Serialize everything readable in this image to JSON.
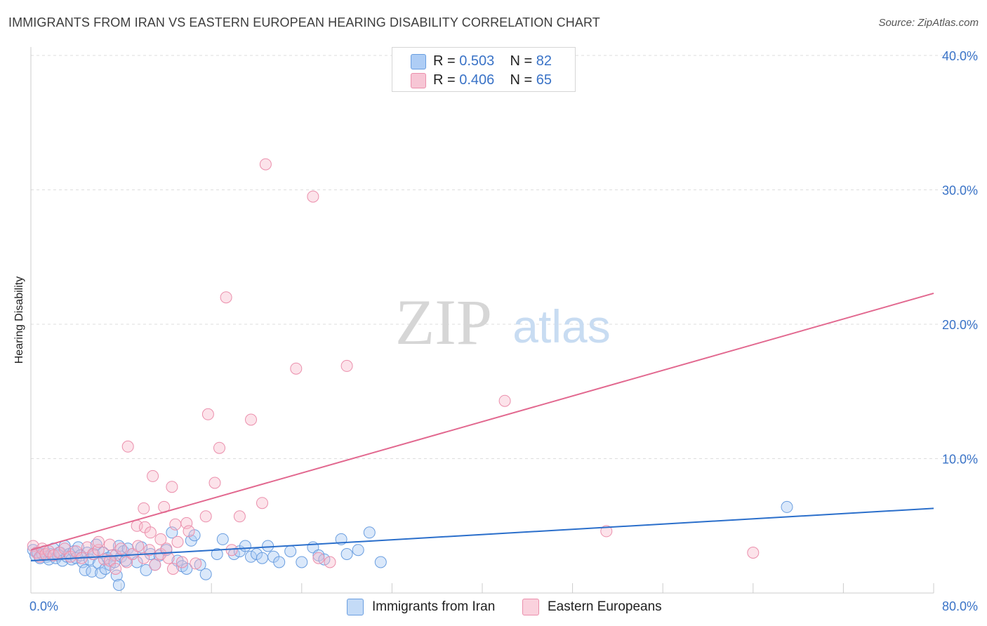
{
  "title": "IMMIGRANTS FROM IRAN VS EASTERN EUROPEAN HEARING DISABILITY CORRELATION CHART",
  "source": "Source: ZipAtlas.com",
  "watermark": {
    "zip": "ZIP",
    "atlas": "atlas"
  },
  "colors": {
    "blue_fill": "#aecdf5",
    "blue_stroke": "#6a9ee0",
    "blue_line": "#2b6fcb",
    "pink_fill": "#f7b9cb",
    "pink_stroke": "#eb8fac",
    "pink_line": "#e2688f",
    "tick_label": "#3a73c7",
    "grid": "#dddddd"
  },
  "stats": [
    {
      "r_label": "R =",
      "r_value": "0.503",
      "n_label": "N =",
      "n_value": "82",
      "series": "blue"
    },
    {
      "r_label": "R =",
      "r_value": "0.406",
      "n_label": "N =",
      "n_value": "65",
      "series": "pink"
    }
  ],
  "legend": [
    {
      "label": "Immigrants from Iran",
      "series": "blue"
    },
    {
      "label": "Eastern Europeans",
      "series": "pink"
    }
  ],
  "chart_data": {
    "type": "scatter",
    "ylabel": "Hearing Disability",
    "xlim": [
      0,
      80
    ],
    "ylim": [
      0,
      40
    ],
    "x_tick_labels": [
      {
        "x": 0,
        "label": "0.0%"
      },
      {
        "x": 80,
        "label": "80.0%"
      }
    ],
    "y_tick_labels": [
      {
        "y": 10,
        "label": "10.0%"
      },
      {
        "y": 20,
        "label": "20.0%"
      },
      {
        "y": 30,
        "label": "30.0%"
      },
      {
        "y": 40,
        "label": "40.0%"
      }
    ],
    "series": [
      {
        "name": "Immigrants from Iran",
        "color": "#6a9ee0",
        "trend": {
          "x": [
            0,
            80
          ],
          "y": [
            2.4,
            6.3
          ]
        },
        "points": [
          [
            0.2,
            3.2
          ],
          [
            0.4,
            2.8
          ],
          [
            0.6,
            3.0
          ],
          [
            0.8,
            2.6
          ],
          [
            1.0,
            2.9
          ],
          [
            1.2,
            3.1
          ],
          [
            1.4,
            2.7
          ],
          [
            1.6,
            2.5
          ],
          [
            1.8,
            2.9
          ],
          [
            2.0,
            3.3
          ],
          [
            2.2,
            2.6
          ],
          [
            2.4,
            2.8
          ],
          [
            2.6,
            3.0
          ],
          [
            2.8,
            2.4
          ],
          [
            3.0,
            3.5
          ],
          [
            3.2,
            2.7
          ],
          [
            3.4,
            2.9
          ],
          [
            3.6,
            2.5
          ],
          [
            3.8,
            3.1
          ],
          [
            4.0,
            2.6
          ],
          [
            4.2,
            3.4
          ],
          [
            4.4,
            2.8
          ],
          [
            4.6,
            2.3
          ],
          [
            4.8,
            1.7
          ],
          [
            5.0,
            3.0
          ],
          [
            5.2,
            2.5
          ],
          [
            5.4,
            1.6
          ],
          [
            5.6,
            2.9
          ],
          [
            5.8,
            3.6
          ],
          [
            6.0,
            2.2
          ],
          [
            6.2,
            1.5
          ],
          [
            6.4,
            3.0
          ],
          [
            6.6,
            1.8
          ],
          [
            6.8,
            2.6
          ],
          [
            7.0,
            2.1
          ],
          [
            7.2,
            2.8
          ],
          [
            7.4,
            2.3
          ],
          [
            7.6,
            1.3
          ],
          [
            7.8,
            3.5
          ],
          [
            8.0,
            2.7
          ],
          [
            8.2,
            3.1
          ],
          [
            8.4,
            2.4
          ],
          [
            8.6,
            3.3
          ],
          [
            9.0,
            2.9
          ],
          [
            9.4,
            2.3
          ],
          [
            9.8,
            3.4
          ],
          [
            10.2,
            1.7
          ],
          [
            10.6,
            2.9
          ],
          [
            11.0,
            2.1
          ],
          [
            11.4,
            2.8
          ],
          [
            12.0,
            3.2
          ],
          [
            12.5,
            4.5
          ],
          [
            13.0,
            2.4
          ],
          [
            13.4,
            2.0
          ],
          [
            13.8,
            1.8
          ],
          [
            14.2,
            3.9
          ],
          [
            14.5,
            4.3
          ],
          [
            15.0,
            2.1
          ],
          [
            15.5,
            1.4
          ],
          [
            16.5,
            2.9
          ],
          [
            17.0,
            4.0
          ],
          [
            18.0,
            2.9
          ],
          [
            18.5,
            3.1
          ],
          [
            19.0,
            3.5
          ],
          [
            19.5,
            2.7
          ],
          [
            20.0,
            2.9
          ],
          [
            20.5,
            2.6
          ],
          [
            21.0,
            3.5
          ],
          [
            21.5,
            2.7
          ],
          [
            22.0,
            2.3
          ],
          [
            23.0,
            3.1
          ],
          [
            24.0,
            2.3
          ],
          [
            25.0,
            3.4
          ],
          [
            25.5,
            2.8
          ],
          [
            26.0,
            2.5
          ],
          [
            27.5,
            4.0
          ],
          [
            28.0,
            2.9
          ],
          [
            29.0,
            3.2
          ],
          [
            30.0,
            4.5
          ],
          [
            31.0,
            2.3
          ],
          [
            7.8,
            0.6
          ],
          [
            67.0,
            6.4
          ]
        ]
      },
      {
        "name": "Eastern Europeans",
        "color": "#eb8fac",
        "trend": {
          "x": [
            0,
            80
          ],
          "y": [
            3.2,
            22.3
          ]
        },
        "points": [
          [
            0.2,
            3.5
          ],
          [
            0.5,
            3.0
          ],
          [
            0.8,
            2.7
          ],
          [
            1.0,
            3.3
          ],
          [
            1.3,
            2.9
          ],
          [
            1.6,
            3.1
          ],
          [
            2.0,
            2.8
          ],
          [
            2.5,
            3.0
          ],
          [
            3.0,
            3.3
          ],
          [
            3.5,
            2.7
          ],
          [
            4.0,
            3.1
          ],
          [
            4.5,
            2.6
          ],
          [
            5.0,
            3.4
          ],
          [
            5.5,
            2.9
          ],
          [
            6.0,
            3.2
          ],
          [
            6.5,
            2.5
          ],
          [
            7.0,
            3.6
          ],
          [
            7.5,
            2.8
          ],
          [
            8.0,
            3.3
          ],
          [
            8.5,
            2.3
          ],
          [
            9.0,
            2.9
          ],
          [
            9.5,
            3.5
          ],
          [
            10.0,
            2.6
          ],
          [
            10.5,
            3.2
          ],
          [
            11.0,
            2.1
          ],
          [
            11.5,
            2.9
          ],
          [
            12.0,
            3.3
          ],
          [
            6.0,
            3.8
          ],
          [
            7.0,
            2.4
          ],
          [
            7.5,
            1.8
          ],
          [
            8.6,
            10.9
          ],
          [
            9.4,
            5.0
          ],
          [
            10.0,
            6.3
          ],
          [
            10.1,
            4.9
          ],
          [
            10.6,
            4.5
          ],
          [
            10.8,
            8.7
          ],
          [
            11.5,
            4.0
          ],
          [
            11.8,
            6.4
          ],
          [
            12.2,
            2.6
          ],
          [
            12.5,
            7.9
          ],
          [
            12.6,
            1.8
          ],
          [
            12.8,
            5.1
          ],
          [
            13.0,
            3.8
          ],
          [
            13.4,
            2.3
          ],
          [
            13.8,
            5.2
          ],
          [
            14.0,
            4.6
          ],
          [
            14.6,
            2.2
          ],
          [
            15.5,
            5.7
          ],
          [
            15.7,
            13.3
          ],
          [
            16.3,
            8.2
          ],
          [
            16.7,
            10.8
          ],
          [
            17.3,
            22.0
          ],
          [
            17.8,
            3.2
          ],
          [
            18.5,
            5.7
          ],
          [
            19.5,
            12.9
          ],
          [
            20.5,
            6.7
          ],
          [
            20.8,
            31.9
          ],
          [
            23.5,
            16.7
          ],
          [
            25.0,
            29.5
          ],
          [
            25.5,
            2.6
          ],
          [
            26.5,
            2.3
          ],
          [
            28.0,
            16.9
          ],
          [
            42.0,
            14.3
          ],
          [
            51.0,
            4.6
          ],
          [
            64.0,
            3.0
          ]
        ]
      }
    ]
  }
}
